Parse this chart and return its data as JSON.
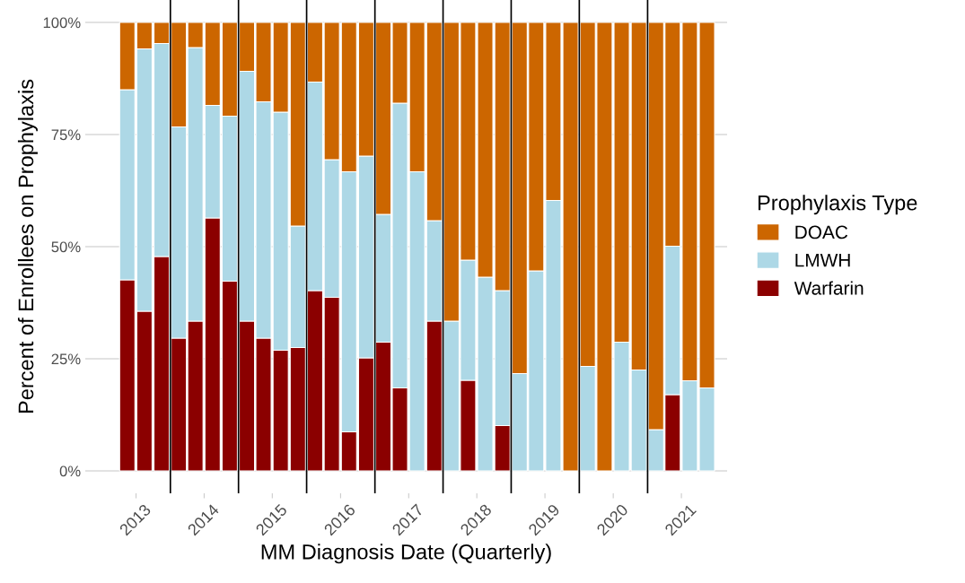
{
  "chart_data": {
    "type": "bar",
    "stacked": true,
    "xlabel": "MM Diagnosis Date (Quarterly)",
    "ylabel": "Percent of Enrollees on Prophylaxis",
    "legend_title": "Prophylaxis Type",
    "x": [
      "2013-05-15",
      "2013-08-15",
      "2013-11-15",
      "2014-02-15",
      "2014-05-15",
      "2014-08-15",
      "2014-11-15",
      "2015-02-15",
      "2015-05-15",
      "2015-08-15",
      "2015-11-15",
      "2016-02-15",
      "2016-05-15",
      "2016-08-15",
      "2016-11-15",
      "2017-02-15",
      "2017-05-15",
      "2017-08-15",
      "2017-11-15",
      "2018-02-15",
      "2018-05-15",
      "2018-08-15",
      "2018-11-15",
      "2019-02-15",
      "2019-05-15",
      "2019-08-15",
      "2019-11-15",
      "2020-02-15",
      "2020-05-15",
      "2020-08-15",
      "2020-11-15",
      "2021-02-15",
      "2021-05-15",
      "2021-08-15",
      "2021-11-15"
    ],
    "series": [
      {
        "name": "Warfarin",
        "color": "#8b0000",
        "values": [
          42.6,
          35.6,
          47.8,
          29.6,
          33.4,
          56.4,
          42.3,
          33.4,
          29.6,
          26.9,
          27.5,
          40.2,
          38.7,
          8.7,
          25.2,
          28.7,
          18.5,
          0,
          33.4,
          0,
          20.2,
          0,
          10.1,
          0,
          0,
          0,
          0,
          0,
          0,
          0,
          0,
          0,
          17.0,
          0,
          0
        ]
      },
      {
        "name": "LMWH",
        "color": "#add8e6",
        "values": [
          42.4,
          58.5,
          47.5,
          47.1,
          61.0,
          25.1,
          36.8,
          55.7,
          52.7,
          53.1,
          27.1,
          46.5,
          30.7,
          58.0,
          45.0,
          28.5,
          63.5,
          66.7,
          22.4,
          33.4,
          26.8,
          43.2,
          30.1,
          21.7,
          44.6,
          60.3,
          0,
          23.3,
          0,
          28.7,
          22.5,
          9.2,
          33.1,
          20.1,
          18.5
        ]
      },
      {
        "name": "DOAC",
        "color": "#cc6600",
        "values": [
          15.0,
          5.9,
          4.7,
          23.3,
          5.6,
          18.5,
          20.9,
          10.9,
          17.7,
          20.0,
          45.4,
          13.3,
          30.6,
          33.3,
          29.8,
          42.8,
          18.0,
          33.3,
          44.2,
          66.6,
          53.0,
          56.8,
          59.8,
          78.3,
          55.4,
          39.7,
          100,
          76.7,
          100,
          71.3,
          77.5,
          90.8,
          49.9,
          79.9,
          81.5
        ]
      }
    ],
    "xlim": [
      "2012-10-02",
      "2022-03-03"
    ],
    "xticks": [
      {
        "value": "2013-07-01",
        "label": "2013"
      },
      {
        "value": "2014-07-01",
        "label": "2014"
      },
      {
        "value": "2015-07-01",
        "label": "2015"
      },
      {
        "value": "2016-07-01",
        "label": "2016"
      },
      {
        "value": "2017-07-01",
        "label": "2017"
      },
      {
        "value": "2018-07-01",
        "label": "2018"
      },
      {
        "value": "2019-07-01",
        "label": "2019"
      },
      {
        "value": "2020-07-01",
        "label": "2020"
      },
      {
        "value": "2021-07-01",
        "label": "2021"
      }
    ],
    "ylim": [
      -5,
      105
    ],
    "yticks": [
      {
        "value": 0,
        "label": "0%"
      },
      {
        "value": 25,
        "label": "25%"
      },
      {
        "value": 50,
        "label": "50%"
      },
      {
        "value": 75,
        "label": "75%"
      },
      {
        "value": 100,
        "label": "100%"
      }
    ],
    "ref_lines": [
      {
        "axis": "x",
        "value": "2014-01-01",
        "color": "#000000",
        "line_style": "solid"
      },
      {
        "axis": "x",
        "value": "2015-01-01",
        "color": "#000000",
        "line_style": "solid"
      },
      {
        "axis": "x",
        "value": "2016-01-01",
        "color": "#000000",
        "line_style": "solid"
      },
      {
        "axis": "x",
        "value": "2017-01-01",
        "color": "#000000",
        "line_style": "solid"
      },
      {
        "axis": "x",
        "value": "2018-01-01",
        "color": "#000000",
        "line_style": "solid"
      },
      {
        "axis": "x",
        "value": "2019-01-01",
        "color": "#000000",
        "line_style": "solid"
      },
      {
        "axis": "x",
        "value": "2020-01-01",
        "color": "#000000",
        "line_style": "solid"
      },
      {
        "axis": "x",
        "value": "2021-01-01",
        "color": "#000000",
        "line_style": "solid"
      }
    ],
    "grid": "y",
    "legend": "right"
  }
}
